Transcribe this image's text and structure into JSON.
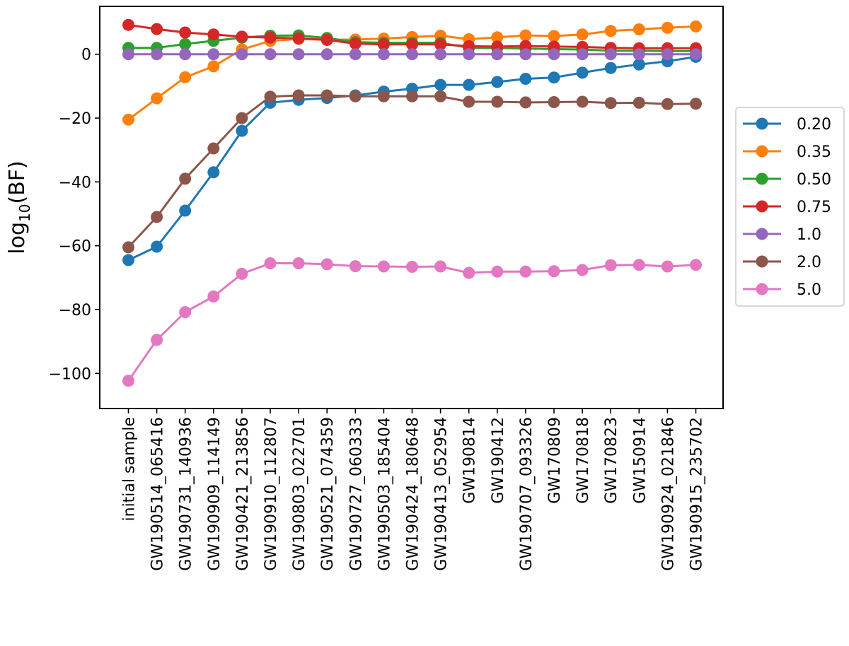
{
  "chart_data": {
    "type": "line",
    "title": "",
    "xlabel": "",
    "ylabel_main": "log",
    "ylabel_sub": "10",
    "ylabel_suffix": "(BF)",
    "ylim": [
      -111,
      15
    ],
    "yticks": [
      {
        "value": 0,
        "label": "0"
      },
      {
        "value": -20,
        "label": "−20"
      },
      {
        "value": -40,
        "label": "−40"
      },
      {
        "value": -60,
        "label": "−60"
      },
      {
        "value": -80,
        "label": "−80"
      },
      {
        "value": -100,
        "label": "−100"
      }
    ],
    "legend_position": "right, outside",
    "grid": false,
    "categories": [
      "initial sample",
      "GW190514_065416",
      "GW190731_140936",
      "GW190909_114149",
      "GW190421_213856",
      "GW190910_112807",
      "GW190803_022701",
      "GW190521_074359",
      "GW190727_060333",
      "GW190503_185404",
      "GW190424_180648",
      "GW190413_052954",
      "GW190814",
      "GW190412",
      "GW190707_093326",
      "GW170809",
      "GW170818",
      "GW170823",
      "GW150914",
      "GW190924_021846",
      "GW190915_235702"
    ],
    "series": [
      {
        "name": "0.20",
        "color": "#1f77b4",
        "values": [
          -64.5,
          -60.3,
          -49,
          -37,
          -24,
          -15.2,
          -14.3,
          -13.7,
          -12.9,
          -11.7,
          -10.8,
          -9.6,
          -9.6,
          -8.7,
          -7.7,
          -7.3,
          -5.8,
          -4.3,
          -3.2,
          -2.2,
          -0.8
        ]
      },
      {
        "name": "0.35",
        "color": "#ff7f0e",
        "values": [
          -20.5,
          -13.8,
          -7.2,
          -3.8,
          1.5,
          4.2,
          4.8,
          4.5,
          4.6,
          4.9,
          5.4,
          5.8,
          4.7,
          5.3,
          5.9,
          5.7,
          6.2,
          7.3,
          7.8,
          8.3,
          8.7
        ]
      },
      {
        "name": "0.50",
        "color": "#2ca02c",
        "values": [
          2,
          2,
          3.2,
          4.2,
          5.2,
          5.8,
          5.9,
          5.1,
          3.8,
          3.6,
          3.6,
          3.6,
          2,
          2,
          1.8,
          1.6,
          1.5,
          1.1,
          1.1,
          1,
          1
        ]
      },
      {
        "name": "0.75",
        "color": "#d62728",
        "values": [
          9.2,
          7.9,
          6.8,
          6.2,
          5.5,
          5.2,
          5,
          4.5,
          3.3,
          3.1,
          3.1,
          3.1,
          2.5,
          2.4,
          2.6,
          2.4,
          2.3,
          2,
          1.9,
          1.9,
          1.9
        ]
      },
      {
        "name": "1.0",
        "color": "#9467bd",
        "values": [
          0,
          0,
          0,
          0,
          0,
          0,
          0,
          0,
          0,
          0,
          0,
          0,
          0,
          0,
          0,
          0,
          0,
          0,
          0,
          0,
          0
        ]
      },
      {
        "name": "2.0",
        "color": "#8c564b",
        "values": [
          -60.5,
          -51,
          -39,
          -29.5,
          -20,
          -13.3,
          -12.9,
          -12.9,
          -13.2,
          -13.2,
          -13.2,
          -13.2,
          -14.9,
          -14.9,
          -15.1,
          -15,
          -14.9,
          -15.3,
          -15.2,
          -15.6,
          -15.5
        ]
      },
      {
        "name": "5.0",
        "color": "#e377c2",
        "values": [
          -102.3,
          -89.5,
          -80.8,
          -75.9,
          -68.8,
          -65.5,
          -65.5,
          -65.8,
          -66.4,
          -66.5,
          -66.6,
          -66.5,
          -68.5,
          -68.1,
          -68.1,
          -68,
          -67.6,
          -66.1,
          -66,
          -66.5,
          -66
        ]
      }
    ]
  }
}
